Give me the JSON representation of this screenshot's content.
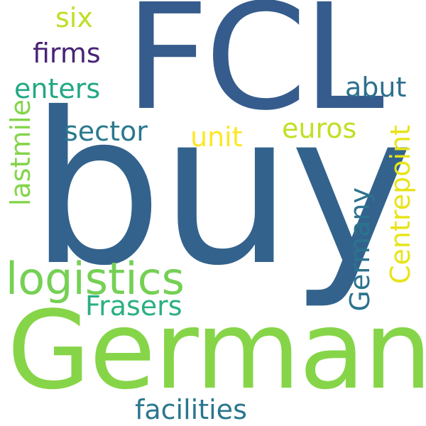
{
  "words": {
    "fcl": {
      "text": "FCL",
      "color": "#365c8d"
    },
    "buy": {
      "text": "buy",
      "color": "#33638d"
    },
    "german": {
      "text": "German",
      "color": "#86d549"
    },
    "logistics": {
      "text": "logistics",
      "color": "#75d054"
    },
    "six": {
      "text": "six",
      "color": "#bddf26"
    },
    "firms": {
      "text": "firms",
      "color": "#482475"
    },
    "enters": {
      "text": "enters",
      "color": "#22a884"
    },
    "abut": {
      "text": "abut",
      "color": "#2d708e"
    },
    "sector": {
      "text": "sector",
      "color": "#2a788e"
    },
    "unit": {
      "text": "unit",
      "color": "#fde725"
    },
    "euros": {
      "text": "euros",
      "color": "#c2df23"
    },
    "frasers": {
      "text": "Frasers",
      "color": "#2ab07f"
    },
    "facilities": {
      "text": "facilities",
      "color": "#2a768e"
    },
    "lastmile": {
      "text": "lastmile",
      "color": "#84d44b"
    },
    "germany": {
      "text": "Germany",
      "color": "#2c738e"
    },
    "centrepoint": {
      "text": "Centrepoint",
      "color": "#e7e419"
    }
  }
}
